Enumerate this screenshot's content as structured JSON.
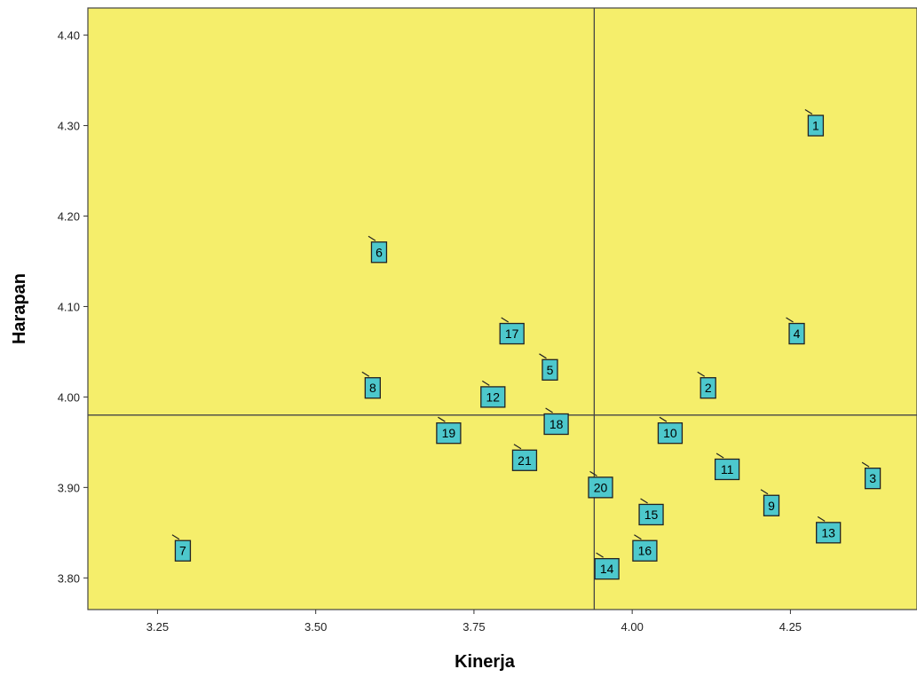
{
  "chart_data": {
    "type": "scatter",
    "title": "",
    "xlabel": "Kinerja",
    "ylabel": "Harapan",
    "xlim": [
      3.14,
      4.45
    ],
    "ylim": [
      3.765,
      4.43
    ],
    "xticks": [
      "3.25",
      "3.50",
      "3.75",
      "4.00",
      "4.25"
    ],
    "yticks": [
      "3.80",
      "3.90",
      "4.00",
      "4.10",
      "4.20",
      "4.30",
      "4.40"
    ],
    "grid": false,
    "reference_lines": {
      "x": 3.94,
      "y": 3.98
    },
    "colors": {
      "plot_background": "#f5ee6b",
      "marker_fill": "#4dc8cc",
      "line": "#444444"
    },
    "points": [
      {
        "label": "1",
        "x": 4.29,
        "y": 4.3
      },
      {
        "label": "2",
        "x": 4.12,
        "y": 4.01
      },
      {
        "label": "3",
        "x": 4.38,
        "y": 3.91
      },
      {
        "label": "4",
        "x": 4.26,
        "y": 4.07
      },
      {
        "label": "5",
        "x": 3.87,
        "y": 4.03
      },
      {
        "label": "6",
        "x": 3.6,
        "y": 4.16
      },
      {
        "label": "7",
        "x": 3.29,
        "y": 3.83
      },
      {
        "label": "8",
        "x": 3.59,
        "y": 4.01
      },
      {
        "label": "9",
        "x": 4.22,
        "y": 3.88
      },
      {
        "label": "10",
        "x": 4.06,
        "y": 3.96
      },
      {
        "label": "11",
        "x": 4.15,
        "y": 3.92
      },
      {
        "label": "12",
        "x": 3.78,
        "y": 4.0
      },
      {
        "label": "13",
        "x": 4.31,
        "y": 3.85
      },
      {
        "label": "14",
        "x": 3.96,
        "y": 3.81
      },
      {
        "label": "15",
        "x": 4.03,
        "y": 3.87
      },
      {
        "label": "16",
        "x": 4.02,
        "y": 3.83
      },
      {
        "label": "17",
        "x": 3.81,
        "y": 4.07
      },
      {
        "label": "18",
        "x": 3.88,
        "y": 3.97
      },
      {
        "label": "19",
        "x": 3.71,
        "y": 3.96
      },
      {
        "label": "20",
        "x": 3.95,
        "y": 3.9
      },
      {
        "label": "21",
        "x": 3.83,
        "y": 3.93
      }
    ]
  }
}
